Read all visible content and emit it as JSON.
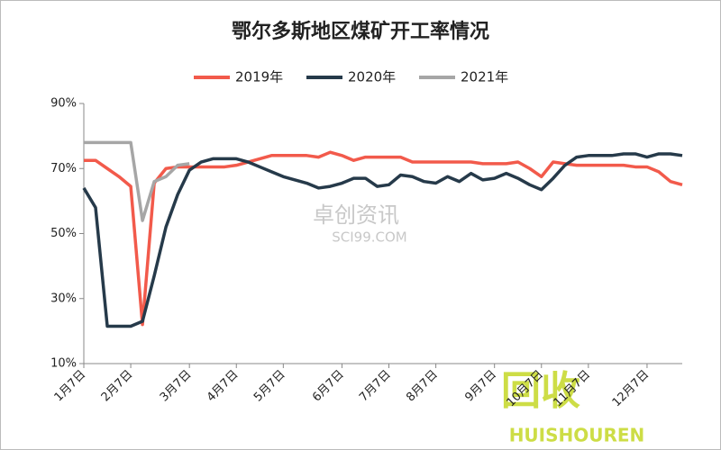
{
  "chart_data": {
    "type": "line",
    "title": "鄂尔多斯地区煤矿开工率情况",
    "watermark": [
      "卓创资讯",
      "SCI99.COM"
    ],
    "logo": [
      "回收",
      "HUISHOUREN"
    ],
    "categories": [
      "1月7日",
      null,
      null,
      null,
      "2月7日",
      null,
      null,
      null,
      null,
      "3月7日",
      null,
      null,
      null,
      "4月7日",
      null,
      null,
      null,
      "5月7日",
      null,
      null,
      null,
      null,
      "6月7日",
      null,
      null,
      null,
      "7月7日",
      null,
      null,
      null,
      "8月7日",
      null,
      null,
      null,
      null,
      "9月7日",
      null,
      null,
      null,
      "10月7日",
      null,
      null,
      null,
      "11月7日",
      null,
      null,
      null,
      null,
      "12月7日",
      null,
      null,
      null
    ],
    "series": [
      {
        "name": "2019年",
        "color": "#f25a4b",
        "values": [
          72.5,
          72.5,
          70,
          67.5,
          64.5,
          22,
          65.5,
          70,
          70.5,
          70.5,
          70.5,
          70.5,
          70.5,
          71,
          72,
          73,
          74,
          74,
          74,
          74,
          73.5,
          75,
          74,
          72.5,
          73.5,
          73.5,
          73.5,
          73.5,
          72,
          72,
          72,
          72,
          72,
          72,
          71.5,
          71.5,
          71.5,
          72,
          70,
          67.5,
          72,
          71.5,
          71,
          71,
          71,
          71,
          71,
          70.5,
          70.5,
          69,
          66,
          65
        ]
      },
      {
        "name": "2020年",
        "color": "#263a4a",
        "values": [
          64,
          58,
          21.5,
          21.5,
          21.5,
          23,
          37,
          52,
          62,
          69.5,
          72,
          73,
          73,
          73,
          72,
          70.5,
          69,
          67.5,
          66.5,
          65.5,
          64,
          64.5,
          65.5,
          67,
          67,
          64.5,
          65,
          68,
          67.5,
          66,
          65.5,
          67.5,
          66,
          68.5,
          66.5,
          67,
          68.5,
          67,
          65,
          63.5,
          67,
          71,
          73.5,
          74,
          74,
          74,
          74.5,
          74.5,
          73.5,
          74.5,
          74.5,
          74
        ]
      },
      {
        "name": "2021年",
        "color": "#a6a6a6",
        "values": [
          78,
          78,
          78,
          78,
          78,
          54,
          66,
          67.5,
          71,
          71.5,
          null,
          null,
          null,
          null,
          null,
          null,
          null,
          null,
          null,
          null,
          null,
          null,
          null,
          null,
          null,
          null,
          null,
          null,
          null,
          null,
          null,
          null,
          null,
          null,
          null,
          null,
          null,
          null,
          null,
          null,
          null,
          null,
          null,
          null,
          null,
          null,
          null,
          null,
          null,
          null,
          null,
          null
        ]
      }
    ],
    "ylim": [
      10,
      90
    ],
    "yticks": [
      {
        "value": 10,
        "label": "10%"
      },
      {
        "value": 30,
        "label": "30%"
      },
      {
        "value": 50,
        "label": "50%"
      },
      {
        "value": 70,
        "label": "70%"
      },
      {
        "value": 90,
        "label": "90%"
      }
    ],
    "legend": "top",
    "grid": false
  }
}
